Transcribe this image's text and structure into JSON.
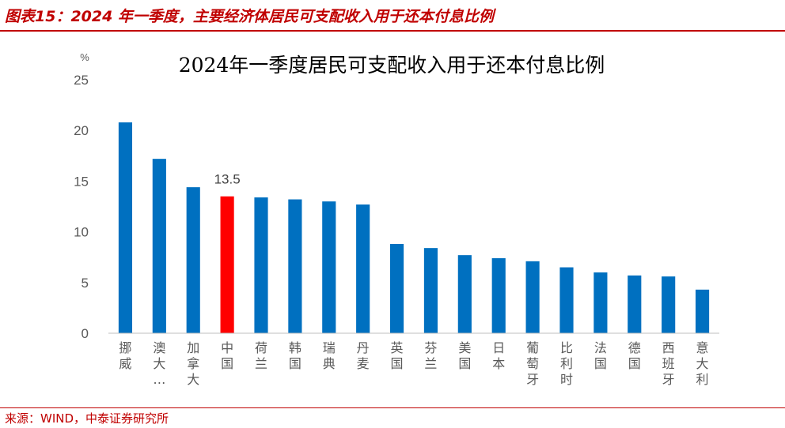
{
  "figure_title": "图表15：2024 年一季度，主要经济体居民可支配收入用于还本付息比例",
  "source": "来源：WIND，中泰证券研究所",
  "chart_data": {
    "type": "bar",
    "title": "2024年一季度居民可支配收入用于还本付息比例",
    "yunit": "%",
    "xlabel": "",
    "ylabel": "",
    "ylim": [
      0,
      25
    ],
    "yticks": [
      0,
      5,
      10,
      15,
      20,
      25
    ],
    "grid": false,
    "legend": "none",
    "bar_color": "#0070c0",
    "highlight_color": "#ff0000",
    "highlight_category": "中国",
    "categories": [
      "挪威",
      "澳大…",
      "加拿大",
      "中国",
      "荷兰",
      "韩国",
      "瑞典",
      "丹麦",
      "英国",
      "芬兰",
      "美国",
      "日本",
      "葡萄牙",
      "比利时",
      "法国",
      "德国",
      "西班牙",
      "意大利"
    ],
    "values": [
      20.8,
      17.2,
      14.4,
      13.5,
      13.4,
      13.2,
      13.0,
      12.7,
      8.8,
      8.4,
      7.7,
      7.4,
      7.1,
      6.5,
      6.0,
      5.7,
      5.6,
      4.3
    ],
    "data_labels": [
      {
        "category": "中国",
        "text": "13.5"
      }
    ]
  }
}
